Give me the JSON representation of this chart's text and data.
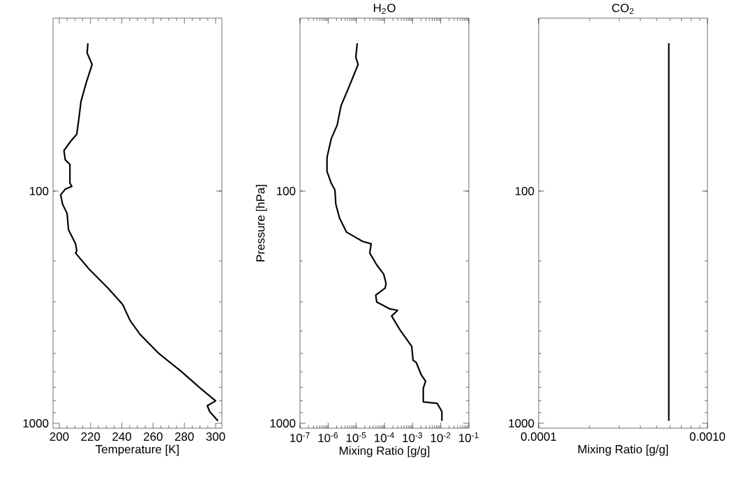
{
  "chart_data": [
    {
      "type": "line",
      "xlabel": "Temperature [K]",
      "log": "y",
      "xlim": [
        196,
        304
      ],
      "ylim": [
        1050,
        18
      ],
      "xticks": [
        200,
        220,
        240,
        260,
        280,
        300
      ],
      "yticks": [
        100,
        1000
      ],
      "series": [
        {
          "color": "#000000",
          "x": [
            218.3,
            217.8,
            221,
            217.2,
            213.9,
            212.4,
            211.2,
            207.4,
            203,
            203.8,
            206.8,
            206.8,
            208,
            203.8,
            200.9,
            202.1,
            205,
            205.9,
            210.4,
            211.2,
            210.4,
            219.2,
            231.1,
            240.5,
            245.3,
            251.8,
            263.6,
            278.4,
            290.2,
            300,
            294.7,
            296.2,
            301.5
          ],
          "values": [
            23.1,
            25.4,
            28.5,
            34.2,
            41.1,
            49.5,
            56.9,
            60.9,
            66.9,
            73.3,
            76.8,
            92.4,
            95.5,
            98.2,
            103.8,
            113.8,
            124.9,
            146.8,
            168.7,
            180.7,
            184.9,
            217.3,
            261.6,
            307.5,
            361,
            415,
            500,
            601,
            706,
            801,
            840,
            891,
            977
          ]
        }
      ]
    },
    {
      "type": "line",
      "title": "H$_{2}$O",
      "xlabel": "Mixing Ratio [g/g]",
      "ylabel": "Pressure [hPa]",
      "log": "xy",
      "xlim": [
        1e-07,
        0.1
      ],
      "ylim": [
        1050,
        18
      ],
      "xticks": [
        {
          "value": 1e-07,
          "label": "10$^{-7}$"
        },
        {
          "value": 1e-06,
          "label": "10$^{-6}$"
        },
        {
          "value": 1e-05,
          "label": "10$^{-5}$"
        },
        {
          "value": 0.0001,
          "label": "10$^{-4}$"
        },
        {
          "value": 0.001,
          "label": "10$^{-3}$"
        },
        {
          "value": 0.01,
          "label": "10$^{-2}$"
        },
        {
          "value": 0.1,
          "label": "10$^{-1}$"
        }
      ],
      "yticks": [
        100,
        1000
      ],
      "series": [
        {
          "color": "#000000",
          "x": [
            1.08e-05,
            9.6e-06,
            1.16e-05,
            5.4e-06,
            2.85e-06,
            2.1e-06,
            1.28e-06,
            9.1e-07,
            9.1e-07,
            1.28e-06,
            1.74e-06,
            1.87e-06,
            2.54e-06,
            4.5e-06,
            1.7e-05,
            3.38e-05,
            3e-05,
            5.3e-05,
            9.4e-05,
            0.000114,
            0.000106,
            4.9e-05,
            5.3e-05,
            0.000155,
            0.000296,
            0.00018,
            0.000358,
            0.00093,
            0.00104,
            0.00136,
            0.00199,
            0.0029,
            0.0024,
            0.0024,
            0.0075,
            0.011,
            0.011
          ],
          "values": [
            23.1,
            26.5,
            28.5,
            35.8,
            43,
            51.9,
            59.6,
            71.7,
            82.3,
            92.4,
            99,
            113.8,
            130.7,
            150.3,
            164.9,
            168.7,
            184.9,
            207.8,
            227.9,
            249.9,
            261.6,
            280.3,
            300.3,
            321.7,
            326.3,
            345.1,
            396.3,
            466,
            535.5,
            548,
            615.5,
            659,
            706,
            809,
            821,
            890,
            977
          ]
        }
      ]
    },
    {
      "type": "line",
      "title": "CO$_{2}$",
      "xlabel": "Mixing Ratio [g/g]",
      "log": "xy",
      "xlim": [
        0.0001,
        0.001
      ],
      "ylim": [
        1050,
        18
      ],
      "xticks": [
        {
          "value": 0.0001,
          "label": "0.0001"
        },
        {
          "value": 0.001,
          "label": "0.0010"
        }
      ],
      "yticks": [
        100,
        1000
      ],
      "series": [
        {
          "color": "#000000",
          "x": [
            0.00059,
            0.00059
          ],
          "values": [
            23.1,
            977
          ]
        }
      ]
    }
  ]
}
